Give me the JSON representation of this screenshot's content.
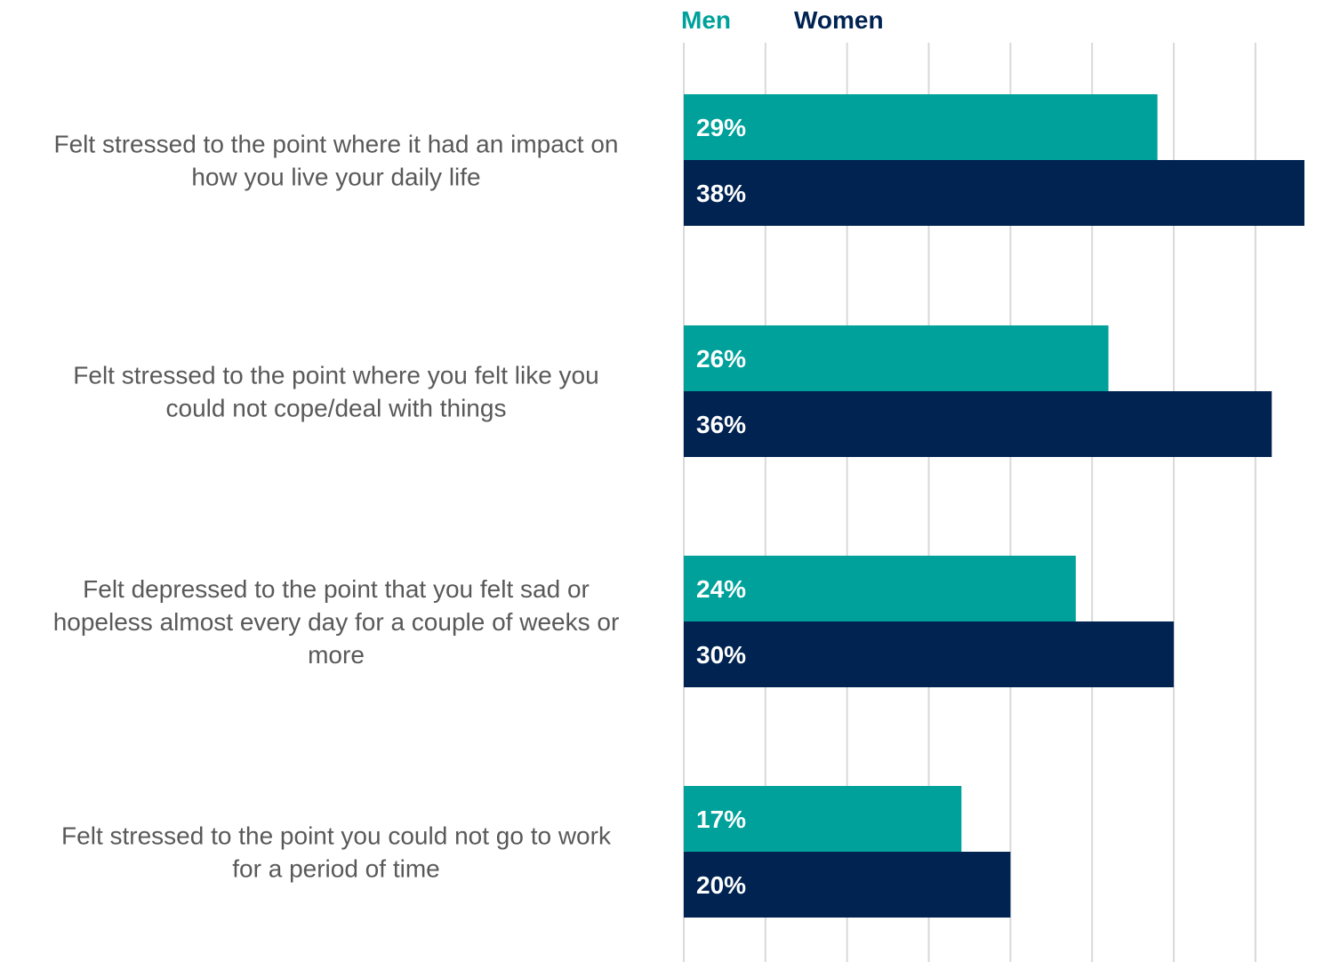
{
  "chart_data": {
    "type": "bar",
    "orientation": "horizontal",
    "categories": [
      "Felt stressed to the point where it had an impact on how you live your daily life",
      "Felt stressed to the point where you felt like you could not cope/deal with things",
      "Felt depressed to the point that you felt sad or hopeless almost every day for a couple of weeks or more",
      "Felt stressed to the point you could not go to work for a period of time"
    ],
    "category_lines": [
      [
        "Felt stressed to the point where it had an impact on",
        "how you live your daily life"
      ],
      [
        "Felt stressed to the point where you felt like you",
        "could not cope/deal with things"
      ],
      [
        "Felt depressed to the point that you felt sad or",
        "hopeless almost every day for a couple of weeks or",
        "more"
      ],
      [
        "Felt stressed to the point you could not go to work",
        "for a period of time"
      ]
    ],
    "series": [
      {
        "name": "Men",
        "color": "#00a19b",
        "values": [
          29,
          26,
          24,
          17
        ],
        "labels": [
          "29%",
          "26%",
          "24%",
          "17%"
        ]
      },
      {
        "name": "Women",
        "color": "#002352",
        "values": [
          38,
          36,
          30,
          20
        ],
        "labels": [
          "38%",
          "36%",
          "30%",
          "20%"
        ]
      }
    ],
    "xlim": [
      0,
      38
    ],
    "grid_step": 5,
    "grid": true,
    "grid_color": "#d9d9d9",
    "legend_position": "top",
    "category_label_color": "#595959",
    "value_label_color": "#ffffff"
  }
}
